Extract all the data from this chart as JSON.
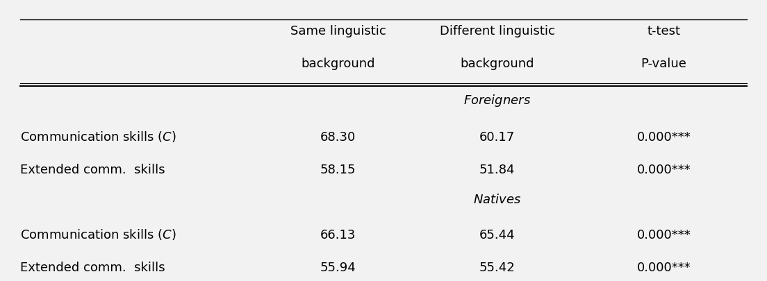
{
  "col_headers": [
    [
      "Same linguistic",
      "background"
    ],
    [
      "Different linguistic",
      "background"
    ],
    [
      "t-test",
      "P-value"
    ]
  ],
  "sections": [
    {
      "label": "Foreigners",
      "rows": [
        {
          "name": "Communication skills ($C$)",
          "same": "68.30",
          "different": "60.17",
          "ttest": "0.000***"
        },
        {
          "name": "Extended comm.  skills",
          "same": "58.15",
          "different": "51.84",
          "ttest": "0.000***"
        }
      ]
    },
    {
      "label": "Natives",
      "rows": [
        {
          "name": "Communication skills ($C$)",
          "same": "66.13",
          "different": "65.44",
          "ttest": "0.000***"
        },
        {
          "name": "Extended comm.  skills",
          "same": "55.94",
          "different": "55.42",
          "ttest": "0.000***"
        }
      ]
    }
  ],
  "bg_color": "#f2f2f2",
  "text_color": "#000000",
  "font_size": 13,
  "header_font_size": 13
}
